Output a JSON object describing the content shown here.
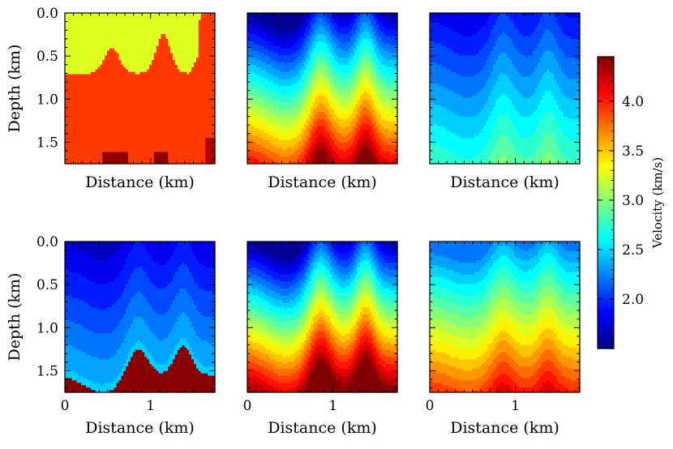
{
  "chart_data": {
    "type": "heatmap",
    "description_units": "velocity model panels, 2 rows x 3 columns",
    "x_range_km": [
      0,
      1.75
    ],
    "y_range_km": [
      0,
      1.75
    ],
    "y_inverted": true,
    "xlabel": "Distance (km)",
    "ylabel": "Depth (km)",
    "x_ticks": [
      0,
      1
    ],
    "x_tick_labels": [
      "0",
      "1"
    ],
    "y_ticks": [
      0.0,
      0.5,
      1.0,
      1.5
    ],
    "y_tick_labels": [
      "0.0",
      "0.5",
      "1.0",
      "1.5"
    ],
    "colorbar": {
      "label": "Velocity (km/s)",
      "vmin": 1.5,
      "vmax": 4.45,
      "ticks": [
        2.0,
        2.5,
        3.0,
        3.5,
        4.0
      ],
      "tick_labels": [
        "2.0",
        "2.5",
        "3.0",
        "3.5",
        "4.0"
      ],
      "colormap": "jet"
    },
    "panels": [
      {
        "id": "top-left",
        "row": 0,
        "col": 0,
        "top_velocity": 3.25,
        "gradient": 0.0,
        "relief": 0.78,
        "base_velocity": 3.92,
        "high_patch": 4.4
      },
      {
        "id": "top-middle",
        "row": 0,
        "col": 1,
        "top_velocity": 1.6,
        "gradient": 1.45,
        "relief": 0.85
      },
      {
        "id": "top-right",
        "row": 0,
        "col": 2,
        "top_velocity": 1.85,
        "gradient": 0.55,
        "relief": 0.82
      },
      {
        "id": "bottom-left",
        "row": 1,
        "col": 0,
        "top_velocity": 1.75,
        "gradient": 0.45,
        "relief": 0.8,
        "high_patch": 4.4
      },
      {
        "id": "bottom-middle",
        "row": 1,
        "col": 1,
        "top_velocity": 1.6,
        "gradient": 1.65,
        "relief": 0.85
      },
      {
        "id": "bottom-right",
        "row": 1,
        "col": 2,
        "top_velocity": 2.15,
        "gradient": 1.05,
        "relief": 0.55
      }
    ]
  }
}
